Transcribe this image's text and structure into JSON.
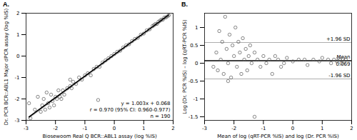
{
  "chart_data": [
    {
      "type": "scatter",
      "title": "A.",
      "x_label": "Biosewoom Real Q BCR::ABL1 assay (log %IS)",
      "y_label": "Dr. PCR BCR::ABL1 Major dPCR assay (log %IS)",
      "xlim": [
        -3,
        2
      ],
      "xticks": [
        -3,
        -2,
        -1,
        0,
        1,
        2
      ],
      "ylim": [
        -3,
        2
      ],
      "yticks": [
        -3,
        -2,
        -1,
        0,
        1,
        2
      ],
      "grid": false,
      "annotations": [
        "y = 1.003x + 0.068",
        "r = 0.970 (95% CI: 0.960-0.977)",
        "n = 190"
      ],
      "series": [
        {
          "type": "line",
          "color": "#bbbbbb",
          "line_style": "solid",
          "x": [
            -3,
            2
          ],
          "values": [
            -3,
            2
          ]
        },
        {
          "type": "scatter",
          "marker": "circle",
          "color": "#555555",
          "x": [
            -2.9,
            -2.85,
            -2.7,
            -2.6,
            -2.5,
            -2.45,
            -2.4,
            -2.35,
            -2.3,
            -2.25,
            -2.2,
            -2.15,
            -2.1,
            -2.05,
            -2.0,
            -1.95,
            -1.9,
            -1.85,
            -1.8,
            -1.75,
            -1.7,
            -1.6,
            -1.5,
            -1.45,
            -1.4,
            -1.3,
            -1.2,
            -1.1,
            -1.0,
            -0.9,
            -0.8,
            -0.7,
            -0.6,
            -0.5,
            -0.4,
            -0.3,
            -0.2,
            -0.1,
            0.0,
            0.1,
            0.2,
            0.3,
            0.4,
            0.5,
            0.6,
            0.7,
            0.8,
            0.9,
            1.0,
            1.1,
            1.2,
            1.3,
            1.35,
            1.4,
            1.45,
            1.5,
            1.55,
            1.6,
            1.65,
            1.7,
            1.75,
            1.8,
            1.85,
            -0.55,
            -1.5
          ],
          "values": [
            -2.2,
            -2.9,
            -2.5,
            -1.9,
            -2.6,
            -2.3,
            -2.0,
            -2.5,
            -1.7,
            -2.2,
            -2.4,
            -1.8,
            -2.1,
            -2.3,
            -1.9,
            -2.0,
            -1.6,
            -1.9,
            -2.0,
            -1.6,
            -1.8,
            -1.5,
            -1.4,
            -1.5,
            -1.2,
            -1.3,
            -1.0,
            -1.1,
            -0.9,
            -0.8,
            -0.9,
            -0.6,
            -0.5,
            -0.5,
            -0.3,
            -0.2,
            -0.1,
            0.0,
            0.1,
            0.2,
            0.25,
            0.4,
            0.5,
            0.55,
            0.7,
            0.8,
            0.85,
            1.0,
            1.05,
            1.2,
            1.25,
            1.4,
            1.45,
            1.5,
            1.5,
            1.6,
            1.65,
            1.7,
            1.7,
            1.8,
            1.8,
            1.85,
            1.9,
            -2.05,
            -1.1
          ]
        },
        {
          "type": "line",
          "color": "#000000",
          "line_style": "solid",
          "x": [
            -2.9,
            1.85
          ],
          "values": [
            -2.841,
            1.924
          ]
        }
      ]
    },
    {
      "type": "scatter",
      "title": "B.",
      "x_label": "Mean of log (qRT-PCR %IS) and log (Dr. PCR %IS)",
      "y_label": "Log (Dr. PCR %IS) – log (qRT-PCR %IS)",
      "xlim": [
        -3,
        2
      ],
      "xticks": [
        -3,
        -2,
        -1,
        0,
        1,
        2
      ],
      "ylim": [
        -1.6,
        1.4
      ],
      "yticks": [
        -1.5,
        -1,
        -0.5,
        0,
        0.5,
        1
      ],
      "grid": false,
      "reference_lines": [
        {
          "value": 0.58,
          "label": "+1.96 SD",
          "color": "#999999",
          "line_style": "solid"
        },
        {
          "value": 0.069,
          "label": "Mean",
          "value_label": "0.069",
          "color": "#000000",
          "line_style": "solid"
        },
        {
          "value": -0.44,
          "label": "-1.96 SD",
          "color": "#999999",
          "line_style": "solid"
        }
      ],
      "series": [
        {
          "type": "scatter",
          "marker": "circle",
          "color": "#555555",
          "x": [
            -2.6,
            -2.55,
            -2.5,
            -2.45,
            -2.4,
            -2.35,
            -2.3,
            -2.25,
            -2.2,
            -2.15,
            -2.1,
            -2.05,
            -2.0,
            -1.95,
            -1.9,
            -1.85,
            -1.8,
            -1.75,
            -1.7,
            -1.65,
            -1.6,
            -1.55,
            -1.5,
            -1.45,
            -1.4,
            -1.3,
            -1.3,
            -1.2,
            -1.1,
            -1.0,
            -0.9,
            -0.8,
            -0.7,
            -0.6,
            -0.5,
            -0.4,
            -0.3,
            -0.2,
            0.0,
            0.2,
            0.4,
            0.5,
            0.7,
            0.9,
            1.0,
            1.2,
            1.3,
            1.4,
            1.5,
            1.55,
            1.6,
            1.65,
            1.7,
            1.75,
            1.8,
            -2.7,
            -2.2
          ],
          "values": [
            0.3,
            -0.2,
            0.9,
            0.1,
            0.6,
            -0.3,
            1.3,
            0.4,
            0.0,
            0.8,
            -0.4,
            0.5,
            0.2,
            1.0,
            -0.1,
            0.6,
            0.3,
            -0.3,
            0.7,
            0.1,
            0.4,
            -0.2,
            0.2,
            0.5,
            0.0,
            -1.5,
            0.3,
            0.1,
            -0.1,
            0.2,
            0.0,
            0.1,
            -0.3,
            0.2,
            0.1,
            -0.1,
            0.0,
            0.15,
            0.05,
            0.1,
            0.1,
            -0.05,
            0.1,
            0.05,
            0.15,
            0.1,
            0.0,
            0.1,
            0.05,
            0.15,
            0.1,
            0.0,
            0.12,
            0.05,
            0.1,
            -0.1,
            -0.5
          ]
        }
      ]
    }
  ]
}
